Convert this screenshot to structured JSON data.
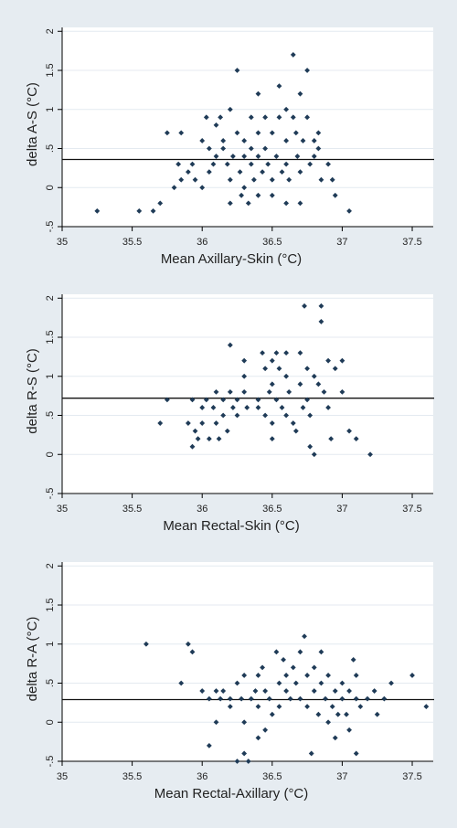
{
  "chart_data": [
    {
      "type": "scatter",
      "xlabel": "Mean Axillary-Skin (°C)",
      "ylabel": "delta A-S (°C)",
      "xlim": [
        35,
        37.65
      ],
      "ylim": [
        -0.5,
        2.05
      ],
      "xticks": [
        "35",
        "35.5",
        "36",
        "36.5",
        "37",
        "37.5"
      ],
      "yticks": [
        "2",
        "1.5",
        "1",
        ".5",
        "0",
        "-.5"
      ],
      "mean_line": 0.36,
      "grid": true,
      "marker_color": "#1f3b57",
      "points": [
        [
          35.25,
          -0.3
        ],
        [
          35.55,
          -0.3
        ],
        [
          35.65,
          -0.3
        ],
        [
          35.7,
          -0.2
        ],
        [
          35.75,
          0.7
        ],
        [
          35.8,
          0.0
        ],
        [
          35.83,
          0.3
        ],
        [
          35.85,
          0.7
        ],
        [
          35.85,
          0.1
        ],
        [
          35.9,
          0.2
        ],
        [
          35.93,
          0.3
        ],
        [
          35.95,
          0.1
        ],
        [
          36.0,
          0.0
        ],
        [
          36.0,
          0.6
        ],
        [
          36.03,
          0.9
        ],
        [
          36.05,
          0.5
        ],
        [
          36.05,
          0.2
        ],
        [
          36.08,
          0.3
        ],
        [
          36.1,
          0.8
        ],
        [
          36.1,
          0.4
        ],
        [
          36.13,
          0.9
        ],
        [
          36.15,
          0.6
        ],
        [
          36.15,
          0.5
        ],
        [
          36.18,
          0.3
        ],
        [
          36.2,
          1.0
        ],
        [
          36.2,
          0.1
        ],
        [
          36.2,
          -0.2
        ],
        [
          36.22,
          0.4
        ],
        [
          36.25,
          1.5
        ],
        [
          36.25,
          0.7
        ],
        [
          36.27,
          0.2
        ],
        [
          36.28,
          -0.1
        ],
        [
          36.3,
          0.6
        ],
        [
          36.3,
          0.4
        ],
        [
          36.3,
          0.0
        ],
        [
          36.33,
          -0.2
        ],
        [
          36.35,
          0.9
        ],
        [
          36.35,
          0.5
        ],
        [
          36.35,
          0.3
        ],
        [
          36.37,
          0.1
        ],
        [
          36.4,
          1.2
        ],
        [
          36.4,
          0.7
        ],
        [
          36.4,
          0.4
        ],
        [
          36.4,
          -0.1
        ],
        [
          36.43,
          0.2
        ],
        [
          36.45,
          0.9
        ],
        [
          36.45,
          0.5
        ],
        [
          36.47,
          0.3
        ],
        [
          36.5,
          0.7
        ],
        [
          36.5,
          0.1
        ],
        [
          36.5,
          -0.1
        ],
        [
          36.53,
          0.4
        ],
        [
          36.55,
          1.3
        ],
        [
          36.55,
          0.9
        ],
        [
          36.57,
          0.2
        ],
        [
          36.6,
          1.0
        ],
        [
          36.6,
          0.6
        ],
        [
          36.6,
          0.3
        ],
        [
          36.6,
          -0.2
        ],
        [
          36.62,
          0.1
        ],
        [
          36.65,
          1.7
        ],
        [
          36.65,
          0.9
        ],
        [
          36.67,
          0.7
        ],
        [
          36.68,
          0.4
        ],
        [
          36.7,
          1.2
        ],
        [
          36.7,
          0.2
        ],
        [
          36.7,
          -0.2
        ],
        [
          36.72,
          0.6
        ],
        [
          36.75,
          1.5
        ],
        [
          36.75,
          0.9
        ],
        [
          36.77,
          0.3
        ],
        [
          36.8,
          0.6
        ],
        [
          36.8,
          0.4
        ],
        [
          36.83,
          0.7
        ],
        [
          36.83,
          0.5
        ],
        [
          36.85,
          0.1
        ],
        [
          36.9,
          0.3
        ],
        [
          36.93,
          0.1
        ],
        [
          36.95,
          -0.1
        ],
        [
          37.05,
          -0.3
        ]
      ]
    },
    {
      "type": "scatter",
      "xlabel": "Mean Rectal-Skin (°C)",
      "ylabel": "delta R-S (°C)",
      "xlim": [
        35,
        37.65
      ],
      "ylim": [
        -0.5,
        2.05
      ],
      "xticks": [
        "35",
        "35.5",
        "36",
        "36.5",
        "37",
        "37.5"
      ],
      "yticks": [
        "2",
        "1.5",
        "1",
        ".5",
        "0",
        "-.5"
      ],
      "mean_line": 0.72,
      "grid": true,
      "marker_color": "#1f3b57",
      "points": [
        [
          35.7,
          0.4
        ],
        [
          35.75,
          0.7
        ],
        [
          35.9,
          0.4
        ],
        [
          35.93,
          0.7
        ],
        [
          35.93,
          0.1
        ],
        [
          35.95,
          0.3
        ],
        [
          35.97,
          0.2
        ],
        [
          36.0,
          0.6
        ],
        [
          36.0,
          0.4
        ],
        [
          36.03,
          0.7
        ],
        [
          36.05,
          0.2
        ],
        [
          36.08,
          0.6
        ],
        [
          36.1,
          0.8
        ],
        [
          36.1,
          0.4
        ],
        [
          36.12,
          0.2
        ],
        [
          36.15,
          0.7
        ],
        [
          36.15,
          0.5
        ],
        [
          36.18,
          0.3
        ],
        [
          36.2,
          1.4
        ],
        [
          36.2,
          0.8
        ],
        [
          36.22,
          0.6
        ],
        [
          36.25,
          0.7
        ],
        [
          36.25,
          0.5
        ],
        [
          36.3,
          1.2
        ],
        [
          36.3,
          1.0
        ],
        [
          36.3,
          0.8
        ],
        [
          36.32,
          0.6
        ],
        [
          36.4,
          0.7
        ],
        [
          36.4,
          0.6
        ],
        [
          36.43,
          1.3
        ],
        [
          36.45,
          1.1
        ],
        [
          36.45,
          0.5
        ],
        [
          36.48,
          0.8
        ],
        [
          36.5,
          1.2
        ],
        [
          36.5,
          0.9
        ],
        [
          36.5,
          0.4
        ],
        [
          36.5,
          0.2
        ],
        [
          36.53,
          1.3
        ],
        [
          36.53,
          0.7
        ],
        [
          36.55,
          1.1
        ],
        [
          36.57,
          0.6
        ],
        [
          36.6,
          1.3
        ],
        [
          36.6,
          1.0
        ],
        [
          36.6,
          0.5
        ],
        [
          36.62,
          0.8
        ],
        [
          36.65,
          0.4
        ],
        [
          36.67,
          0.3
        ],
        [
          36.7,
          1.3
        ],
        [
          36.7,
          0.9
        ],
        [
          36.72,
          0.6
        ],
        [
          36.73,
          1.9
        ],
        [
          36.75,
          1.1
        ],
        [
          36.75,
          0.7
        ],
        [
          36.77,
          0.5
        ],
        [
          36.77,
          0.1
        ],
        [
          36.8,
          1.0
        ],
        [
          36.8,
          0.0
        ],
        [
          36.83,
          0.9
        ],
        [
          36.85,
          1.9
        ],
        [
          36.85,
          1.7
        ],
        [
          36.87,
          0.8
        ],
        [
          36.9,
          1.2
        ],
        [
          36.9,
          0.6
        ],
        [
          36.92,
          0.2
        ],
        [
          36.95,
          1.1
        ],
        [
          37.0,
          1.2
        ],
        [
          37.0,
          0.8
        ],
        [
          37.05,
          0.3
        ],
        [
          37.1,
          0.2
        ],
        [
          37.2,
          0.0
        ]
      ]
    },
    {
      "type": "scatter",
      "xlabel": "Mean Rectal-Axillary (°C)",
      "ylabel": "delta R-A (°C)",
      "xlim": [
        35,
        37.65
      ],
      "ylim": [
        -0.5,
        2.05
      ],
      "xticks": [
        "35",
        "35.5",
        "36",
        "36.5",
        "37",
        "37.5"
      ],
      "yticks": [
        "2",
        "1.5",
        "1",
        ".5",
        "0",
        "-.5"
      ],
      "mean_line": 0.29,
      "grid": true,
      "marker_color": "#1f3b57",
      "points": [
        [
          35.6,
          1.0
        ],
        [
          35.85,
          0.5
        ],
        [
          35.9,
          1.0
        ],
        [
          35.93,
          0.9
        ],
        [
          36.0,
          0.4
        ],
        [
          36.05,
          -0.3
        ],
        [
          36.05,
          0.3
        ],
        [
          36.1,
          0.4
        ],
        [
          36.1,
          0.0
        ],
        [
          36.13,
          0.3
        ],
        [
          36.15,
          0.4
        ],
        [
          36.2,
          0.2
        ],
        [
          36.2,
          0.3
        ],
        [
          36.25,
          0.5
        ],
        [
          36.25,
          -0.5
        ],
        [
          36.28,
          0.3
        ],
        [
          36.3,
          0.6
        ],
        [
          36.3,
          0.0
        ],
        [
          36.3,
          -0.4
        ],
        [
          36.33,
          -0.5
        ],
        [
          36.35,
          0.3
        ],
        [
          36.38,
          0.4
        ],
        [
          36.4,
          0.6
        ],
        [
          36.4,
          0.2
        ],
        [
          36.4,
          -0.2
        ],
        [
          36.43,
          0.7
        ],
        [
          36.45,
          0.4
        ],
        [
          36.45,
          -0.1
        ],
        [
          36.48,
          0.3
        ],
        [
          36.5,
          0.1
        ],
        [
          36.53,
          0.9
        ],
        [
          36.55,
          0.5
        ],
        [
          36.55,
          0.2
        ],
        [
          36.58,
          0.8
        ],
        [
          36.6,
          0.6
        ],
        [
          36.6,
          0.4
        ],
        [
          36.63,
          0.3
        ],
        [
          36.65,
          0.7
        ],
        [
          36.67,
          0.5
        ],
        [
          36.7,
          0.9
        ],
        [
          36.7,
          0.3
        ],
        [
          36.73,
          1.1
        ],
        [
          36.75,
          0.6
        ],
        [
          36.75,
          0.2
        ],
        [
          36.78,
          -0.4
        ],
        [
          36.8,
          0.7
        ],
        [
          36.8,
          0.4
        ],
        [
          36.83,
          0.1
        ],
        [
          36.85,
          0.5
        ],
        [
          36.85,
          0.9
        ],
        [
          36.88,
          0.3
        ],
        [
          36.9,
          0.6
        ],
        [
          36.9,
          0.0
        ],
        [
          36.93,
          0.2
        ],
        [
          36.95,
          0.4
        ],
        [
          36.95,
          -0.2
        ],
        [
          36.97,
          0.1
        ],
        [
          37.0,
          0.5
        ],
        [
          37.0,
          0.3
        ],
        [
          37.03,
          0.1
        ],
        [
          37.05,
          -0.1
        ],
        [
          37.05,
          0.4
        ],
        [
          37.08,
          0.8
        ],
        [
          37.1,
          0.6
        ],
        [
          37.1,
          0.3
        ],
        [
          37.1,
          -0.4
        ],
        [
          37.13,
          0.2
        ],
        [
          37.18,
          0.3
        ],
        [
          37.23,
          0.4
        ],
        [
          37.25,
          0.1
        ],
        [
          37.3,
          0.3
        ],
        [
          37.35,
          0.5
        ],
        [
          37.5,
          0.6
        ],
        [
          37.6,
          0.2
        ]
      ]
    }
  ]
}
